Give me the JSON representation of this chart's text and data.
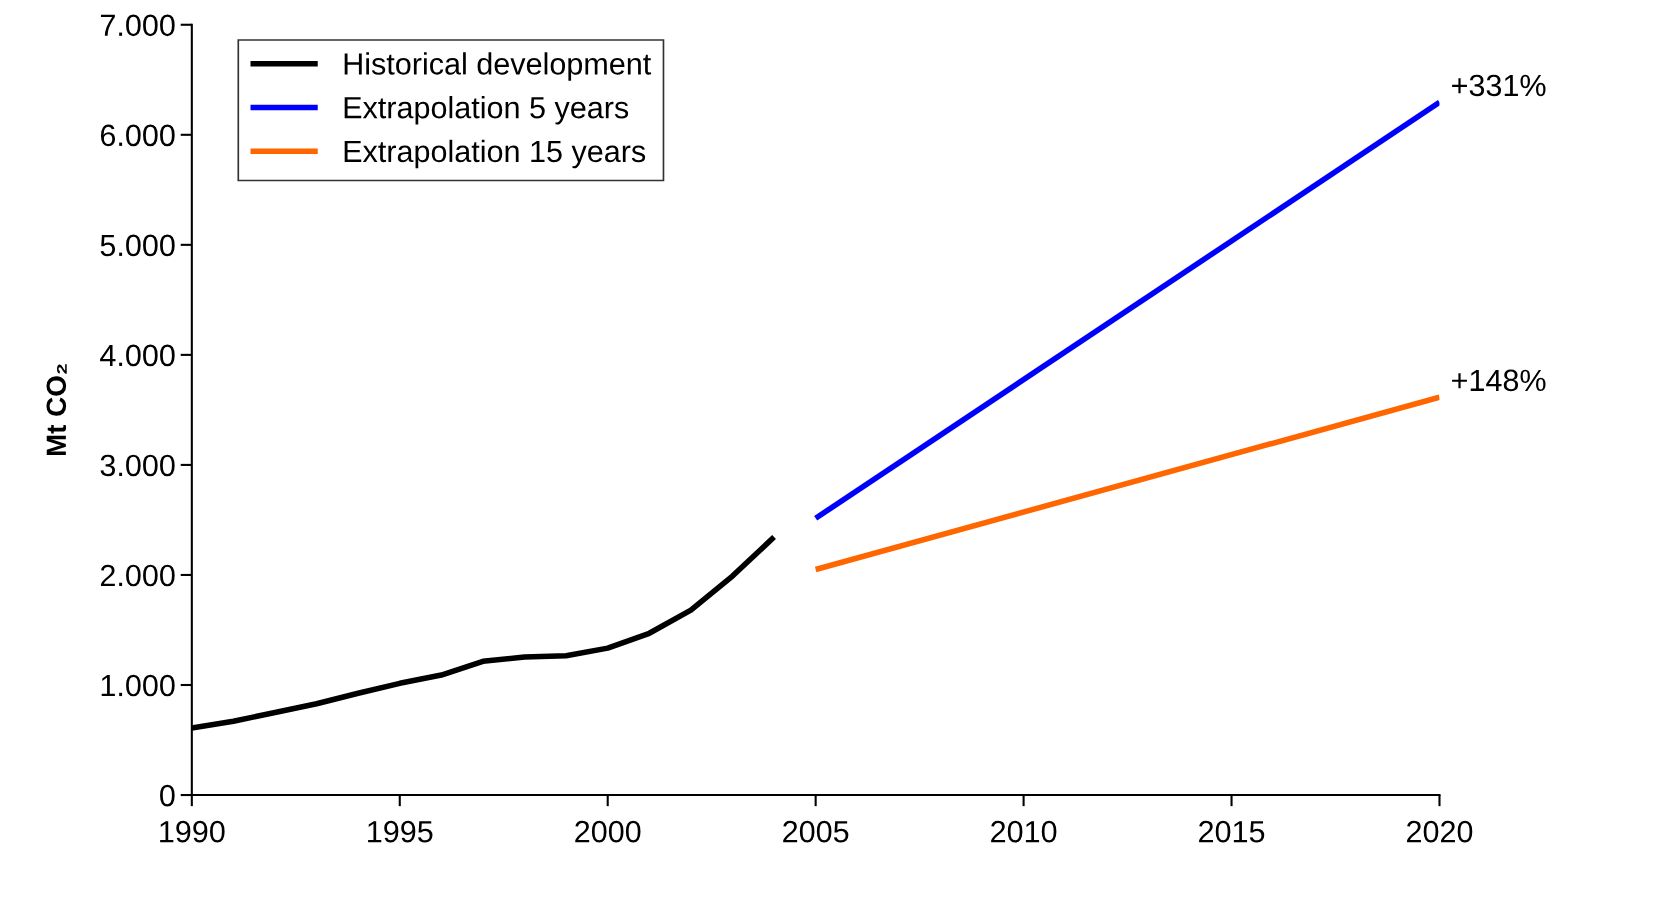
{
  "chart_data": {
    "type": "line",
    "ylabel": "Mt CO₂",
    "series": [
      {
        "name": "Historical development",
        "color": "#000000",
        "x": [
          1990,
          1991,
          1992,
          1993,
          1994,
          1995,
          1996,
          1997,
          1998,
          1999,
          2000,
          2001,
          2002,
          2003,
          2004
        ],
        "values": [
          610,
          670,
          750,
          830,
          925,
          1015,
          1090,
          1215,
          1255,
          1265,
          1335,
          1470,
          1680,
          1990,
          2345
        ]
      },
      {
        "name": "Extrapolation 5 years",
        "color": "#0000ff",
        "x": [
          2005,
          2020
        ],
        "values": [
          2515,
          6295
        ]
      },
      {
        "name": "Extrapolation 15 years",
        "color": "#ff6600",
        "x": [
          2005,
          2020
        ],
        "values": [
          2050,
          3615
        ]
      }
    ],
    "annotations": [
      {
        "text": "+331%",
        "x": 2020,
        "y": 6295
      },
      {
        "text": "+148%",
        "x": 2020,
        "y": 3615
      }
    ],
    "xlim": [
      1990,
      2020
    ],
    "xticks": [
      1990,
      1995,
      2000,
      2005,
      2010,
      2015,
      2020
    ],
    "ylim": [
      0,
      7000
    ],
    "yticks": [
      {
        "value": 0,
        "label": "0"
      },
      {
        "value": 1000,
        "label": "1.000"
      },
      {
        "value": 2000,
        "label": "2.000"
      },
      {
        "value": 3000,
        "label": "3.000"
      },
      {
        "value": 4000,
        "label": "4.000"
      },
      {
        "value": 5000,
        "label": "5.000"
      },
      {
        "value": 6000,
        "label": "6.000"
      },
      {
        "value": 7000,
        "label": "7.000"
      }
    ],
    "grid": false,
    "legend": "top left",
    "marker": "none",
    "line_style": "solid"
  }
}
